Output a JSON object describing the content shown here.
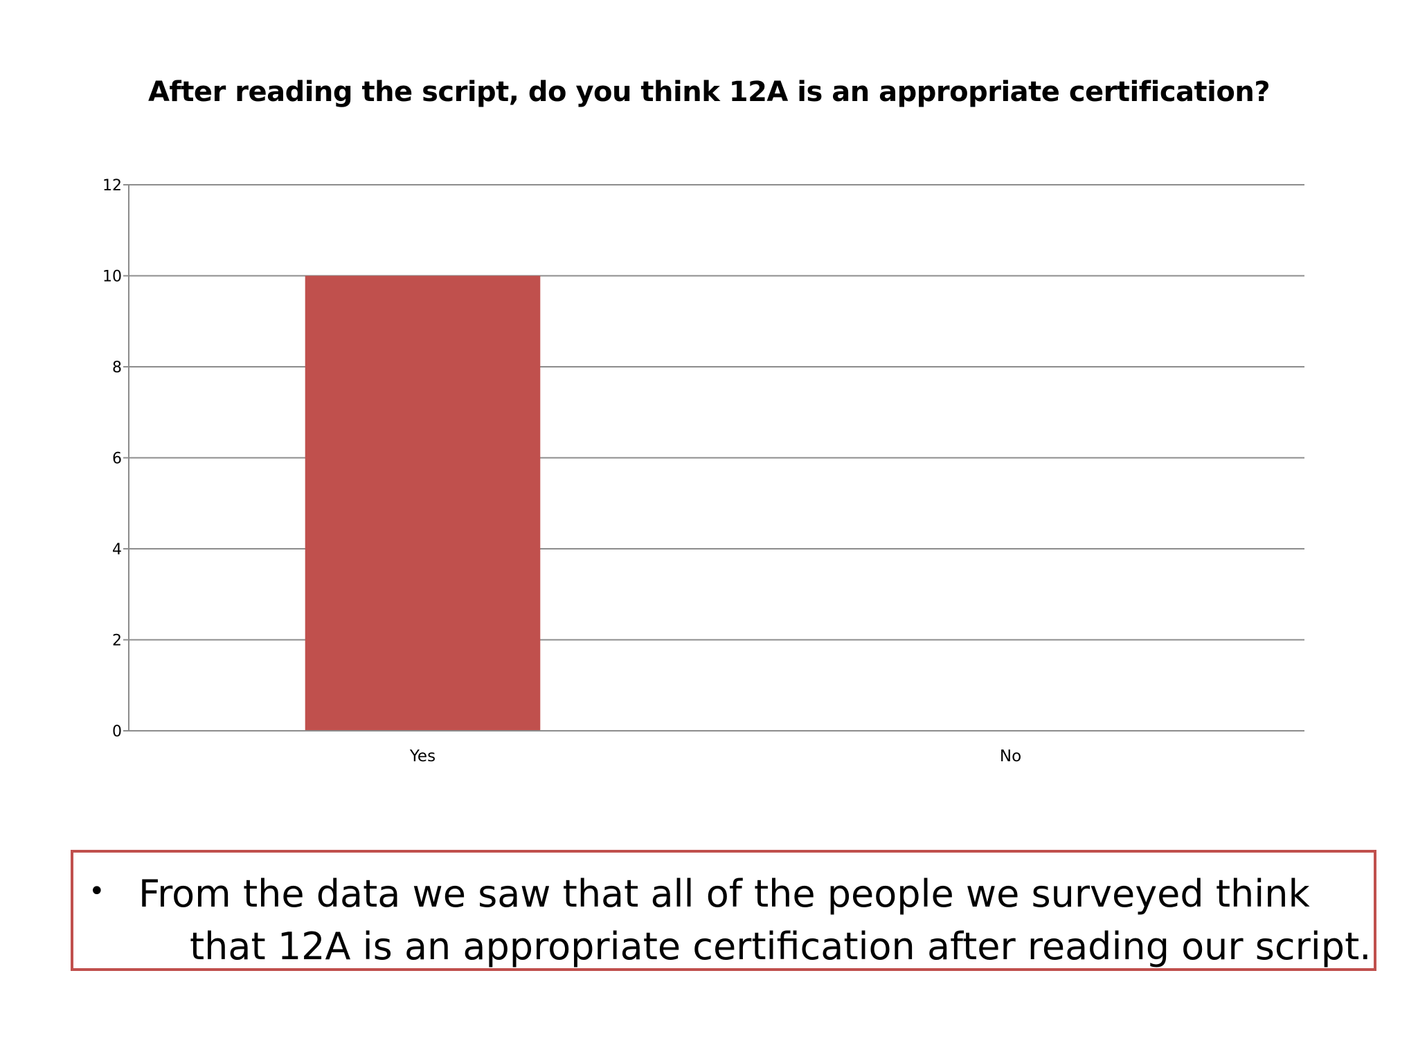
{
  "chart_data": {
    "type": "bar",
    "title": "After reading the script, do you think 12A is an appropriate certification?",
    "categories": [
      "Yes",
      "No"
    ],
    "values": [
      10,
      0
    ],
    "ylim": [
      0,
      12
    ],
    "yticks": [
      "0",
      "2",
      "4",
      "6",
      "8",
      "10",
      "12"
    ],
    "grid": true,
    "legend": "none",
    "bar_color": "#c0504d"
  },
  "callout": {
    "line1": "From the data we saw that all of the people we surveyed think",
    "line2": "that 12A is an appropriate certification after reading our script.",
    "border_color": "#c0504d"
  }
}
